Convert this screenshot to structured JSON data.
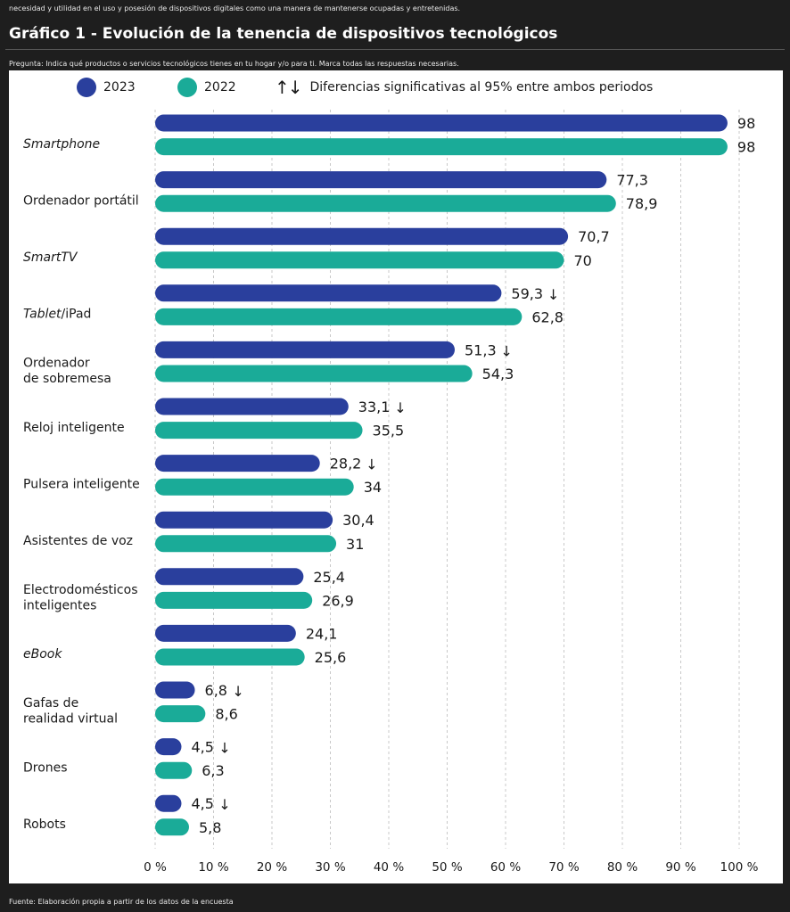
{
  "header": {
    "snippet": "necesidad y utilidad en el uso y posesión de dispositivos digitales como una manera de mantenerse ocupadas y entretenidas.",
    "title": "Gráfico 1 - Evolución de la tenencia de dispositivos tecnológicos",
    "question": "Pregunta: Indica qué productos o servicios tecnológicos tienes en tu hogar y/o para ti. Marca todas las respuestas necesarias."
  },
  "legend": {
    "series_2023": "2023",
    "series_2022": "2022",
    "arrows": "↑↓",
    "significance": "Diferencias significativas al 95% entre ambos periodos"
  },
  "footer": "Fuente: Elaboración propia a partir de los datos de la encuesta",
  "colors": {
    "s2023": "#2a3f9d",
    "s2022": "#1aab98"
  },
  "chart_data": {
    "type": "bar",
    "orientation": "horizontal",
    "title": "Gráfico 1 - Evolución de la tenencia de dispositivos tecnológicos",
    "categories": [
      {
        "lines": [
          "Smartphone"
        ],
        "italic": true
      },
      {
        "lines": [
          "Ordenador portátil"
        ],
        "italic": false
      },
      {
        "lines": [
          "SmartTV"
        ],
        "italic": true
      },
      {
        "lines": [
          "Tablet",
          "/iPad"
        ],
        "italic": "partial"
      },
      {
        "lines": [
          "Ordenador",
          "de sobremesa"
        ],
        "italic": false
      },
      {
        "lines": [
          "Reloj inteligente"
        ],
        "italic": false
      },
      {
        "lines": [
          "Pulsera inteligente"
        ],
        "italic": false
      },
      {
        "lines": [
          "Asistentes de voz"
        ],
        "italic": false
      },
      {
        "lines": [
          "Electrodomésticos",
          "inteligentes"
        ],
        "italic": false
      },
      {
        "lines": [
          "eBook"
        ],
        "italic": true
      },
      {
        "lines": [
          "Gafas de",
          "realidad virtual"
        ],
        "italic": false
      },
      {
        "lines": [
          "Drones"
        ],
        "italic": false
      },
      {
        "lines": [
          "Robots"
        ],
        "italic": false
      }
    ],
    "series": [
      {
        "name": "2023",
        "values": [
          98,
          77.3,
          70.7,
          59.3,
          51.3,
          33.1,
          28.2,
          30.4,
          25.4,
          24.1,
          6.8,
          4.5,
          4.5
        ],
        "labels": [
          "98",
          "77,3",
          "70,7",
          "59,3",
          "51,3",
          "33,1",
          "28,2",
          "30,4",
          "25,4",
          "24,1",
          "6,8",
          "4,5",
          "4,5"
        ]
      },
      {
        "name": "2022",
        "values": [
          98,
          78.9,
          70,
          62.8,
          54.3,
          35.5,
          34,
          31,
          26.9,
          25.6,
          8.6,
          6.3,
          5.8
        ],
        "labels": [
          "98",
          "78,9",
          "70",
          "62,8",
          "54,3",
          "35,5",
          "34",
          "31",
          "26,9",
          "25,6",
          "8,6",
          "6,3",
          "5,8"
        ]
      }
    ],
    "significant_decrease": [
      false,
      false,
      false,
      true,
      true,
      true,
      true,
      false,
      false,
      false,
      true,
      true,
      true
    ],
    "down_arrow": "↓",
    "xlim": [
      0,
      100
    ],
    "xticks": [
      "0 %",
      "10 %",
      "20 %",
      "30 %",
      "40 %",
      "50 %",
      "60 %",
      "70 %",
      "80 %",
      "90 %",
      "100 %"
    ],
    "grid": "vertical dashed"
  }
}
